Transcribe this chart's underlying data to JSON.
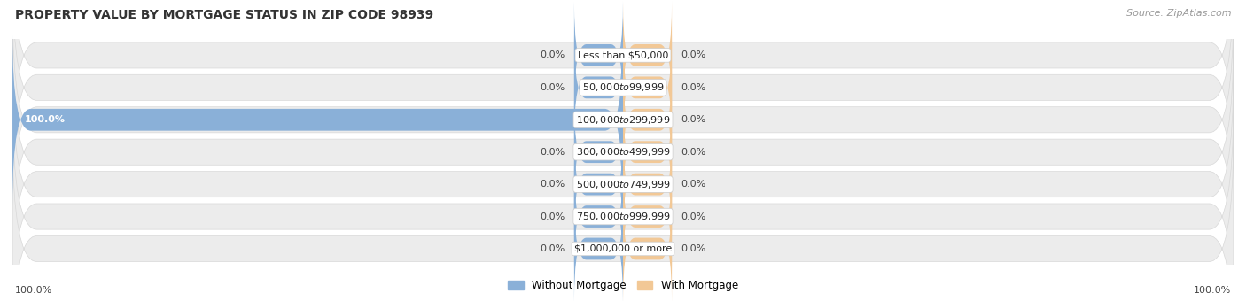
{
  "title": "PROPERTY VALUE BY MORTGAGE STATUS IN ZIP CODE 98939",
  "source": "Source: ZipAtlas.com",
  "categories": [
    "Less than $50,000",
    "$50,000 to $99,999",
    "$100,000 to $299,999",
    "$300,000 to $499,999",
    "$500,000 to $749,999",
    "$750,000 to $999,999",
    "$1,000,000 or more"
  ],
  "without_mortgage": [
    0.0,
    0.0,
    100.0,
    0.0,
    0.0,
    0.0,
    0.0
  ],
  "with_mortgage": [
    0.0,
    0.0,
    0.0,
    0.0,
    0.0,
    0.0,
    0.0
  ],
  "without_mortgage_color": "#8ab0d8",
  "with_mortgage_color": "#f2c896",
  "row_bg_color": "#ececec",
  "row_bg_edge_color": "#d8d8d8",
  "legend_without": "Without Mortgage",
  "legend_with": "With Mortgage",
  "title_fontsize": 10,
  "source_fontsize": 8,
  "axis_range": 100,
  "small_bar_pct": 8.0,
  "cat_label_fontsize": 8,
  "pct_label_fontsize": 8
}
